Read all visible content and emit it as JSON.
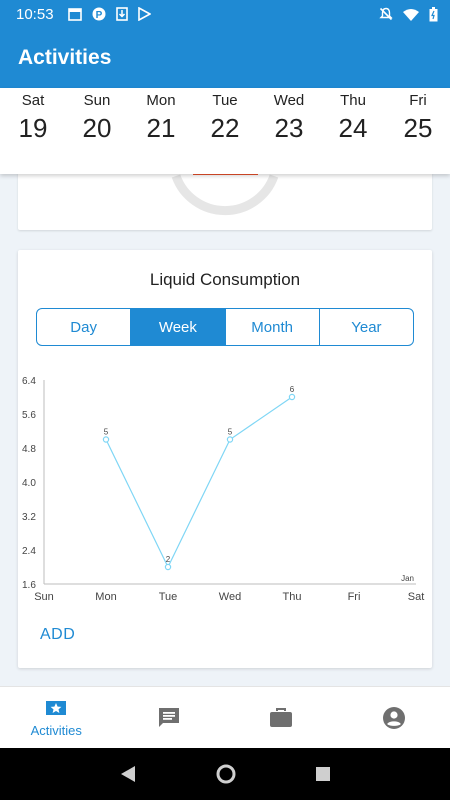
{
  "status_bar": {
    "time": "10:53",
    "left_icons": [
      "calendar-icon",
      "parking-icon",
      "download-icon",
      "play-store-icon"
    ],
    "right_icons": [
      "mute-icon",
      "wifi-icon",
      "battery-icon"
    ]
  },
  "app_bar": {
    "title": "Activities"
  },
  "week_strip": {
    "days": [
      {
        "name": "Sat",
        "num": "19"
      },
      {
        "name": "Sun",
        "num": "20"
      },
      {
        "name": "Mon",
        "num": "21"
      },
      {
        "name": "Tue",
        "num": "22"
      },
      {
        "name": "Wed",
        "num": "23"
      },
      {
        "name": "Thu",
        "num": "24"
      },
      {
        "name": "Fri",
        "num": "25"
      }
    ]
  },
  "liquid_card": {
    "title": "Liquid Consumption",
    "tabs": [
      {
        "label": "Day",
        "active": false
      },
      {
        "label": "Week",
        "active": true
      },
      {
        "label": "Month",
        "active": false
      },
      {
        "label": "Year",
        "active": false
      }
    ],
    "add_label": "ADD"
  },
  "chart_data": {
    "type": "line",
    "categories": [
      "Sun",
      "Mon",
      "Tue",
      "Wed",
      "Thu",
      "Fri",
      "Sat"
    ],
    "values": [
      null,
      5,
      2,
      5,
      6,
      null,
      null
    ],
    "point_labels": [
      "",
      "5",
      "2",
      "5",
      "6",
      "",
      ""
    ],
    "annotation": "Jan",
    "ylim": [
      1.6,
      6.4
    ],
    "yticks": [
      "6.4",
      "5.6",
      "4.8",
      "4.0",
      "3.2",
      "2.4",
      "1.6"
    ],
    "line_color": "#7fd6f5",
    "grid": false
  },
  "bottom_nav": {
    "items": [
      {
        "name": "activities",
        "label": "Activities",
        "icon": "star-badge-icon",
        "active": true
      },
      {
        "name": "messages",
        "label": "",
        "icon": "message-icon",
        "active": false
      },
      {
        "name": "work",
        "label": "",
        "icon": "briefcase-icon",
        "active": false
      },
      {
        "name": "profile",
        "label": "",
        "icon": "account-icon",
        "active": false
      }
    ]
  },
  "colors": {
    "primary": "#1f8ad3",
    "accent_bar": "#e8502a"
  }
}
